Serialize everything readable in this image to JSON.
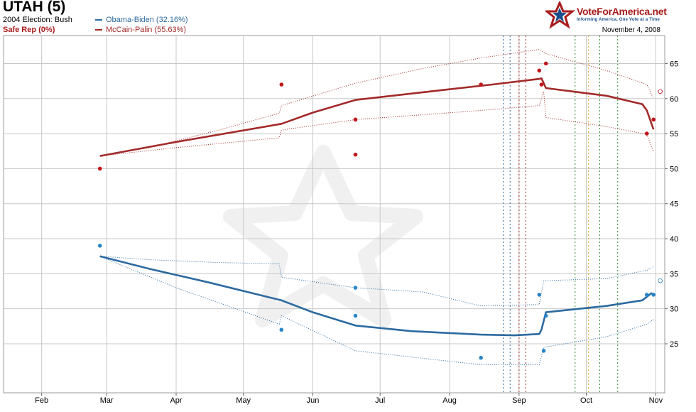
{
  "header": {
    "title": "UTAH (5)",
    "election_2004": "2004 Election: Bush",
    "status": "Safe Rep (0%)",
    "date": "November 4, 2008"
  },
  "branding": {
    "logo_text": "VoteForAmerica.net",
    "tagline": "Informing America, One Vote at a Time",
    "logo_icon": "star-icon"
  },
  "colors": {
    "dem": "#2c6aa0",
    "rep": "#a32a2a",
    "dem_dot": "#2a86c8",
    "rep_dot": "#c0161c",
    "grid": "#c8c8c8"
  },
  "chart_data": {
    "type": "line",
    "x_axis": {
      "ticks": [
        "Feb",
        "Mar",
        "Apr",
        "May",
        "Jun",
        "Jul",
        "Aug",
        "Sep",
        "Oct",
        "Nov"
      ],
      "range": [
        "2008-01-15",
        "2008-11-05"
      ]
    },
    "y_axis": {
      "ylim": [
        18,
        69
      ],
      "ticks": [
        25,
        30,
        35,
        40,
        45,
        50,
        55,
        60,
        65
      ],
      "position": "right"
    },
    "grid": true,
    "legend_placement": "top-left",
    "series": [
      {
        "name": "Obama-Biden (32.16%)",
        "party": "dem",
        "trend": [
          [
            "2008-02-27",
            37.5
          ],
          [
            "2008-03-20",
            35.7
          ],
          [
            "2008-04-15",
            33.8
          ],
          [
            "2008-05-18",
            31.2
          ],
          [
            "2008-06-01",
            29.5
          ],
          [
            "2008-06-20",
            27.6
          ],
          [
            "2008-07-15",
            26.8
          ],
          [
            "2008-08-15",
            26.3
          ],
          [
            "2008-08-30",
            26.2
          ],
          [
            "2008-09-10",
            26.4
          ],
          [
            "2008-09-11",
            27.0
          ],
          [
            "2008-09-13",
            29.5
          ],
          [
            "2008-10-10",
            30.4
          ],
          [
            "2008-10-26",
            31.2
          ],
          [
            "2008-10-30",
            32.2
          ],
          [
            "2008-10-31",
            32.0
          ]
        ],
        "upper": [
          [
            "2008-02-27",
            37.5
          ],
          [
            "2008-03-20",
            37.0
          ],
          [
            "2008-04-20",
            36.6
          ],
          [
            "2008-05-17",
            36.4
          ],
          [
            "2008-05-18",
            34.5
          ],
          [
            "2008-06-20",
            33.0
          ],
          [
            "2008-07-20",
            32.4
          ],
          [
            "2008-08-15",
            30.4
          ],
          [
            "2008-09-10",
            30.6
          ],
          [
            "2008-09-12",
            34.0
          ],
          [
            "2008-10-10",
            34.3
          ],
          [
            "2008-10-28",
            35.5
          ],
          [
            "2008-10-31",
            36.0
          ]
        ],
        "lower": [
          [
            "2008-02-27",
            37.5
          ],
          [
            "2008-04-01",
            33.0
          ],
          [
            "2008-05-17",
            27.8
          ],
          [
            "2008-05-18",
            29.0
          ],
          [
            "2008-06-20",
            24.0
          ],
          [
            "2008-08-15",
            22.0
          ],
          [
            "2008-09-10",
            22.0
          ],
          [
            "2008-09-12",
            24.5
          ],
          [
            "2008-10-10",
            26.0
          ],
          [
            "2008-10-28",
            27.8
          ],
          [
            "2008-10-31",
            28.5
          ]
        ],
        "polls": [
          [
            "2008-02-27",
            39
          ],
          [
            "2008-05-18",
            27
          ],
          [
            "2008-06-20",
            33
          ],
          [
            "2008-06-20",
            29
          ],
          [
            "2008-08-15",
            23
          ],
          [
            "2008-09-10",
            32
          ],
          [
            "2008-09-12",
            24
          ],
          [
            "2008-09-13",
            29
          ],
          [
            "2008-10-28",
            32
          ],
          [
            "2008-10-31",
            32
          ]
        ],
        "open_polls": [
          [
            "2008-11-03",
            34
          ]
        ]
      },
      {
        "name": "McCain-Palin (55.63%)",
        "party": "rep",
        "trend": [
          [
            "2008-02-27",
            51.8
          ],
          [
            "2008-04-01",
            53.8
          ],
          [
            "2008-05-18",
            56.4
          ],
          [
            "2008-06-01",
            58.0
          ],
          [
            "2008-06-20",
            59.8
          ],
          [
            "2008-07-20",
            60.9
          ],
          [
            "2008-08-20",
            62.0
          ],
          [
            "2008-09-10",
            62.8
          ],
          [
            "2008-09-11",
            62.9
          ],
          [
            "2008-09-13",
            61.5
          ],
          [
            "2008-10-10",
            60.4
          ],
          [
            "2008-10-26",
            59.2
          ],
          [
            "2008-10-28",
            58.3
          ],
          [
            "2008-10-31",
            55.6
          ]
        ],
        "upper": [
          [
            "2008-02-27",
            51.8
          ],
          [
            "2008-03-20",
            53.0
          ],
          [
            "2008-04-20",
            55.5
          ],
          [
            "2008-05-17",
            57.9
          ],
          [
            "2008-05-18",
            59.0
          ],
          [
            "2008-06-20",
            62.2
          ],
          [
            "2008-07-20",
            64.3
          ],
          [
            "2008-08-15",
            65.8
          ],
          [
            "2008-09-10",
            67.0
          ],
          [
            "2008-09-13",
            66.4
          ],
          [
            "2008-10-10",
            64.0
          ],
          [
            "2008-10-28",
            62.0
          ],
          [
            "2008-10-31",
            60.0
          ]
        ],
        "lower": [
          [
            "2008-02-27",
            51.8
          ],
          [
            "2008-04-01",
            53.0
          ],
          [
            "2008-05-17",
            54.4
          ],
          [
            "2008-05-18",
            55.5
          ],
          [
            "2008-06-20",
            57.0
          ],
          [
            "2008-08-15",
            58.3
          ],
          [
            "2008-09-10",
            59.0
          ],
          [
            "2008-09-12",
            61.0
          ],
          [
            "2008-09-13",
            57.3
          ],
          [
            "2008-10-10",
            56.0
          ],
          [
            "2008-10-28",
            54.9
          ],
          [
            "2008-10-31",
            52.4
          ]
        ],
        "polls": [
          [
            "2008-02-27",
            50
          ],
          [
            "2008-05-18",
            62
          ],
          [
            "2008-06-20",
            57
          ],
          [
            "2008-06-20",
            52
          ],
          [
            "2008-08-15",
            62
          ],
          [
            "2008-09-10",
            64
          ],
          [
            "2008-09-11",
            62
          ],
          [
            "2008-09-13",
            65
          ],
          [
            "2008-10-28",
            55
          ],
          [
            "2008-10-31",
            57
          ]
        ],
        "open_polls": [
          [
            "2008-11-03",
            61
          ]
        ]
      }
    ],
    "event_lines": [
      {
        "date": "2008-08-25",
        "color": "#2c6aa0"
      },
      {
        "date": "2008-08-28",
        "color": "#2c6aa0"
      },
      {
        "date": "2008-09-01",
        "color": "#a32a2a"
      },
      {
        "date": "2008-09-04",
        "color": "#a32a2a"
      },
      {
        "date": "2008-09-26",
        "color": "#2e8b2e"
      },
      {
        "date": "2008-10-02",
        "color": "#e8a030"
      },
      {
        "date": "2008-10-07",
        "color": "#2e8b2e"
      },
      {
        "date": "2008-10-15",
        "color": "#2e8b2e"
      }
    ]
  }
}
